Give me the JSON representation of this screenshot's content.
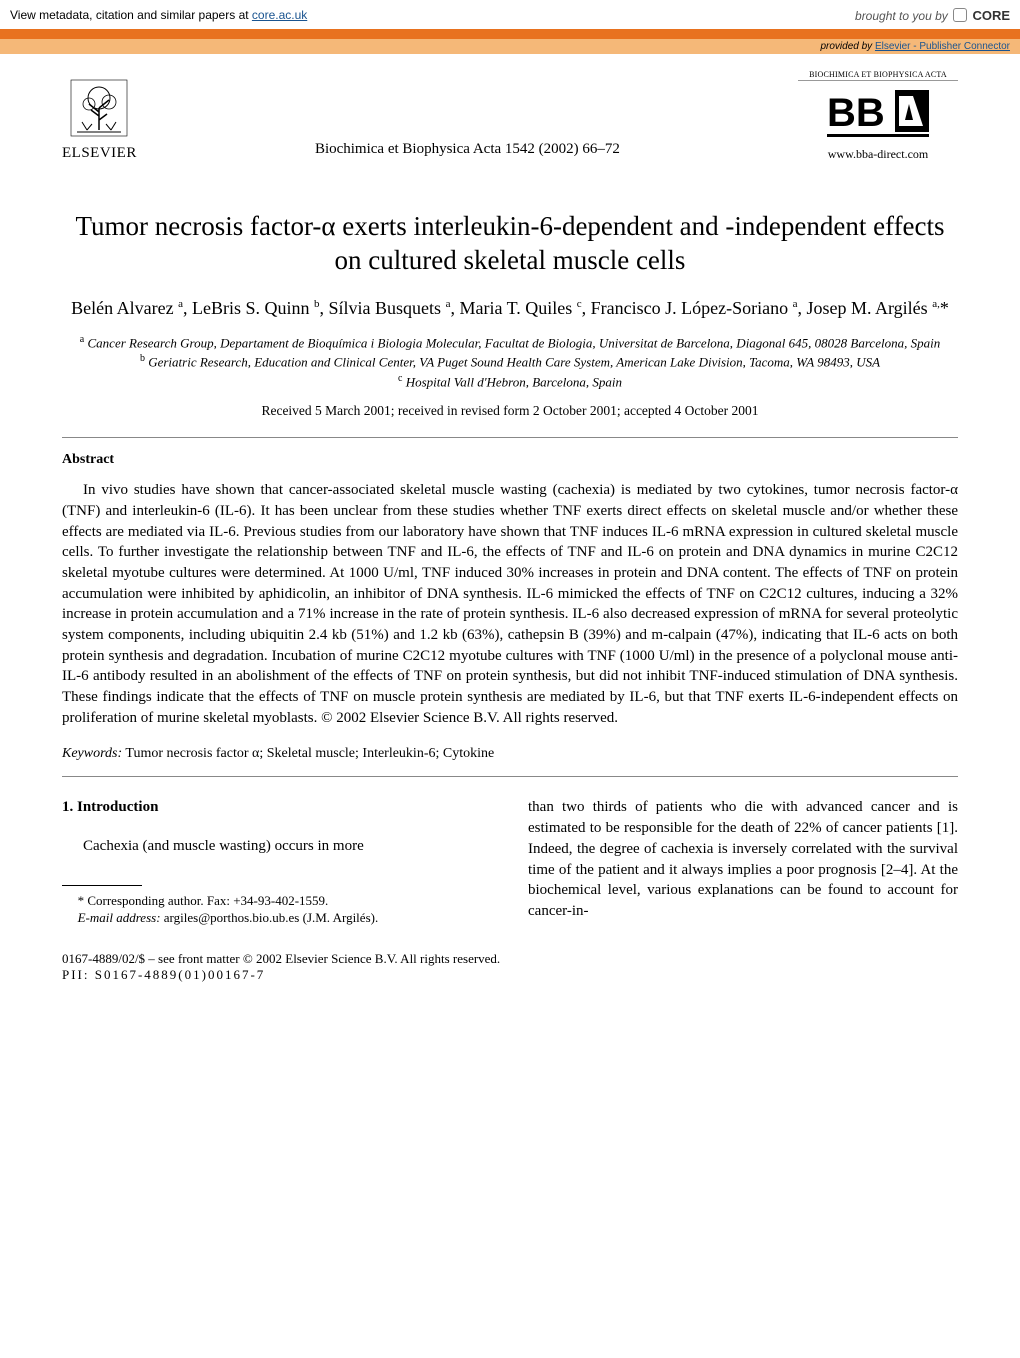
{
  "core_banner": {
    "left_prefix": "View metadata, citation and similar papers at ",
    "left_link": "core.ac.uk",
    "right_prefix": "brought to you by ",
    "brand": "CORE",
    "provided_prefix": "provided by ",
    "provided_link": "Elsevier - Publisher Connector",
    "orange_color": "#e8721f",
    "strip_color": "#f5b878"
  },
  "header": {
    "publisher": "ELSEVIER",
    "journal_line": "Biochimica et Biophysica Acta 1542 (2002) 66–72",
    "bba_topline": "BIOCHIMICA ET BIOPHYSICA ACTA",
    "bba_url": "www.bba-direct.com"
  },
  "article": {
    "title": "Tumor necrosis factor-α exerts interleukin-6-dependent and -independent effects on cultured skeletal muscle cells",
    "authors_html": "Belén Alvarez <sup>a</sup>, LeBris S. Quinn <sup>b</sup>, Sílvia Busquets <sup>a</sup>, Maria T. Quiles <sup>c</sup>, Francisco J. López-Soriano <sup>a</sup>, Josep M. Argilés <sup>a,</sup>*",
    "affiliations": {
      "a": "Cancer Research Group, Departament de Bioquímica i Biologia Molecular, Facultat de Biologia, Universitat de Barcelona, Diagonal 645, 08028 Barcelona, Spain",
      "b": "Geriatric Research, Education and Clinical Center, VA Puget Sound Health Care System, American Lake Division, Tacoma, WA 98493, USA",
      "c": "Hospital Vall d'Hebron, Barcelona, Spain"
    },
    "received": "Received 5 March 2001; received in revised form 2 October 2001; accepted 4 October 2001",
    "abstract_heading": "Abstract",
    "abstract": "In vivo studies have shown that cancer-associated skeletal muscle wasting (cachexia) is mediated by two cytokines, tumor necrosis factor-α (TNF) and interleukin-6 (IL-6). It has been unclear from these studies whether TNF exerts direct effects on skeletal muscle and/or whether these effects are mediated via IL-6. Previous studies from our laboratory have shown that TNF induces IL-6 mRNA expression in cultured skeletal muscle cells. To further investigate the relationship between TNF and IL-6, the effects of TNF and IL-6 on protein and DNA dynamics in murine C2C12 skeletal myotube cultures were determined. At 1000 U/ml, TNF induced 30% increases in protein and DNA content. The effects of TNF on protein accumulation were inhibited by aphidicolin, an inhibitor of DNA synthesis. IL-6 mimicked the effects of TNF on C2C12 cultures, inducing a 32% increase in protein accumulation and a 71% increase in the rate of protein synthesis. IL-6 also decreased expression of mRNA for several proteolytic system components, including ubiquitin 2.4 kb (51%) and 1.2 kb (63%), cathepsin B (39%) and m-calpain (47%), indicating that IL-6 acts on both protein synthesis and degradation. Incubation of murine C2C12 myotube cultures with TNF (1000 U/ml) in the presence of a polyclonal mouse anti-IL-6 antibody resulted in an abolishment of the effects of TNF on protein synthesis, but did not inhibit TNF-induced stimulation of DNA synthesis. These findings indicate that the effects of TNF on muscle protein synthesis are mediated by IL-6, but that TNF exerts IL-6-independent effects on proliferation of murine skeletal myoblasts.  © 2002 Elsevier Science B.V. All rights reserved.",
    "keywords_label": "Keywords:",
    "keywords": "Tumor necrosis factor α; Skeletal muscle; Interleukin-6; Cytokine",
    "section1_heading": "1.  Introduction",
    "intro_col1": "Cachexia (and muscle wasting) occurs in more",
    "intro_col2": "than two thirds of patients who die with advanced cancer and is estimated to be responsible for the death of 22% of cancer patients [1]. Indeed, the degree of cachexia is inversely correlated with the survival time of the patient and it always implies a poor prognosis [2–4]. At the biochemical level, various explanations can be found to account for cancer-in-",
    "footnote_corr": "* Corresponding author. Fax: +34-93-402-1559.",
    "footnote_email_label": "E-mail address:",
    "footnote_email": "argiles@porthos.bio.ub.es (J.M. Argilés).",
    "footer_line1": "0167-4889/02/$ – see front matter © 2002 Elsevier Science B.V. All rights reserved.",
    "footer_line2": "PII: S0167-4889(01)00167-7"
  }
}
